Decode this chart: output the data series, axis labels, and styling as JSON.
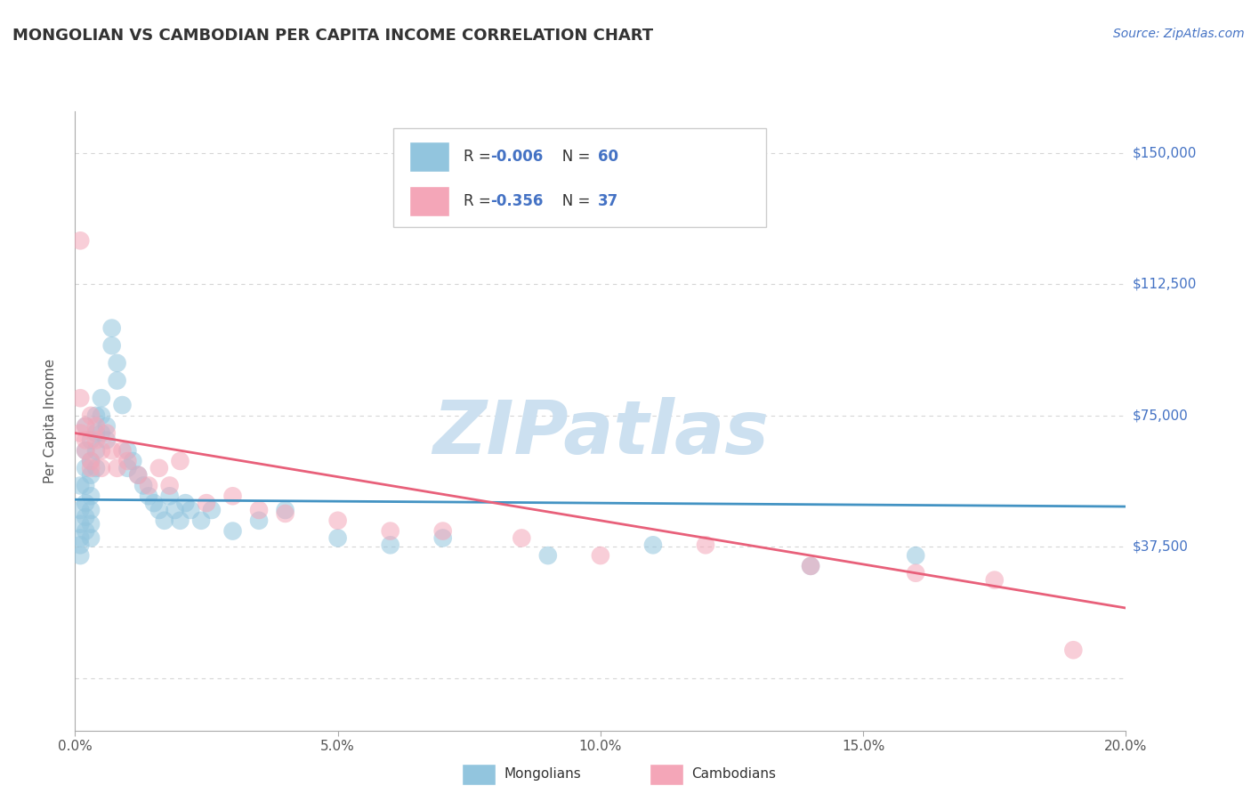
{
  "title": "MONGOLIAN VS CAMBODIAN PER CAPITA INCOME CORRELATION CHART",
  "source": "Source: ZipAtlas.com",
  "ylabel": "Per Capita Income",
  "xlim": [
    0.0,
    0.2
  ],
  "ylim": [
    -15000,
    162000
  ],
  "yticks": [
    0,
    37500,
    75000,
    112500,
    150000
  ],
  "ytick_labels": [
    "",
    "$37,500",
    "$75,000",
    "$112,500",
    "$150,000"
  ],
  "xticks": [
    0.0,
    0.05,
    0.1,
    0.15,
    0.2
  ],
  "xtick_labels": [
    "0.0%",
    "5.0%",
    "10.0%",
    "15.0%",
    "20.0%"
  ],
  "mongolian_color": "#92c5de",
  "cambodian_color": "#f4a6b8",
  "mongolian_line_color": "#4393c3",
  "cambodian_line_color": "#e8607a",
  "R_mongolian": -0.006,
  "N_mongolian": 60,
  "R_cambodian": -0.356,
  "N_cambodian": 37,
  "watermark": "ZIPatlas",
  "watermark_color": "#cce0f0",
  "background_color": "#ffffff",
  "grid_color": "#cccccc",
  "title_color": "#333333",
  "axis_label_color": "#555555",
  "right_tick_color": "#4472c4",
  "legend_label_mongolians": "Mongolians",
  "legend_label_cambodians": "Cambodians",
  "mongolian_scatter_x": [
    0.001,
    0.001,
    0.001,
    0.001,
    0.001,
    0.001,
    0.002,
    0.002,
    0.002,
    0.002,
    0.002,
    0.002,
    0.002,
    0.003,
    0.003,
    0.003,
    0.003,
    0.003,
    0.003,
    0.003,
    0.004,
    0.004,
    0.004,
    0.004,
    0.005,
    0.005,
    0.005,
    0.006,
    0.006,
    0.007,
    0.007,
    0.008,
    0.008,
    0.009,
    0.01,
    0.01,
    0.011,
    0.012,
    0.013,
    0.014,
    0.015,
    0.016,
    0.017,
    0.018,
    0.019,
    0.02,
    0.021,
    0.022,
    0.024,
    0.026,
    0.03,
    0.035,
    0.04,
    0.05,
    0.06,
    0.07,
    0.09,
    0.11,
    0.14,
    0.16
  ],
  "mongolian_scatter_y": [
    55000,
    48000,
    44000,
    40000,
    38000,
    35000,
    72000,
    65000,
    60000,
    55000,
    50000,
    46000,
    42000,
    68000,
    62000,
    58000,
    52000,
    48000,
    44000,
    40000,
    75000,
    70000,
    65000,
    60000,
    80000,
    75000,
    70000,
    72000,
    68000,
    100000,
    95000,
    90000,
    85000,
    78000,
    65000,
    60000,
    62000,
    58000,
    55000,
    52000,
    50000,
    48000,
    45000,
    52000,
    48000,
    45000,
    50000,
    48000,
    45000,
    48000,
    42000,
    45000,
    48000,
    40000,
    38000,
    40000,
    35000,
    38000,
    32000,
    35000
  ],
  "cambodian_scatter_x": [
    0.001,
    0.001,
    0.001,
    0.002,
    0.002,
    0.002,
    0.003,
    0.003,
    0.003,
    0.004,
    0.004,
    0.005,
    0.005,
    0.006,
    0.007,
    0.008,
    0.009,
    0.01,
    0.012,
    0.014,
    0.016,
    0.018,
    0.02,
    0.025,
    0.03,
    0.035,
    0.04,
    0.05,
    0.06,
    0.07,
    0.085,
    0.1,
    0.12,
    0.14,
    0.16,
    0.175,
    0.19
  ],
  "cambodian_scatter_y": [
    125000,
    80000,
    70000,
    72000,
    68000,
    65000,
    62000,
    75000,
    60000,
    72000,
    68000,
    65000,
    60000,
    70000,
    65000,
    60000,
    65000,
    62000,
    58000,
    55000,
    60000,
    55000,
    62000,
    50000,
    52000,
    48000,
    47000,
    45000,
    42000,
    42000,
    40000,
    35000,
    38000,
    32000,
    30000,
    28000,
    8000
  ],
  "mongo_line_x": [
    0.0,
    0.2
  ],
  "mongo_line_y": [
    51000,
    49000
  ],
  "cambo_line_x": [
    0.0,
    0.2
  ],
  "cambo_line_y": [
    70000,
    20000
  ]
}
